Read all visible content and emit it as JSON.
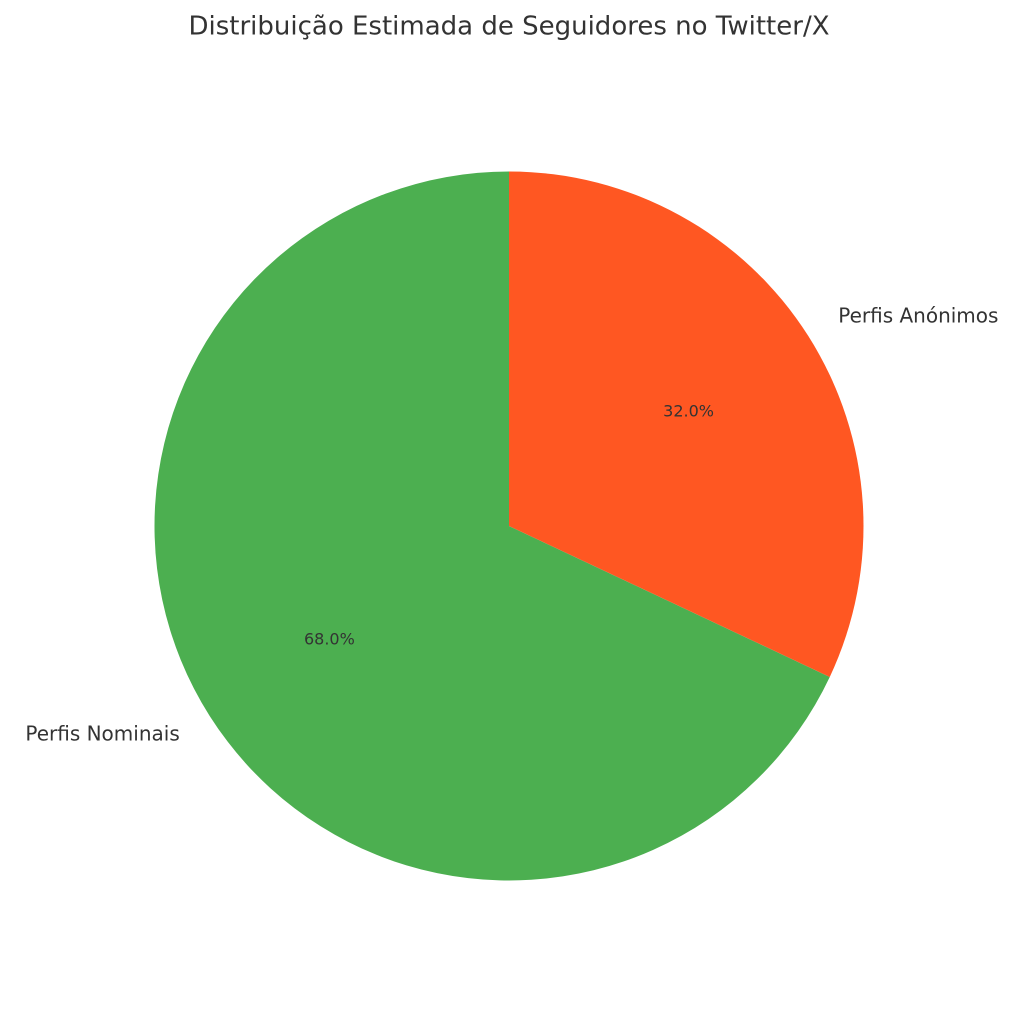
{
  "chart_data": {
    "type": "pie",
    "title": "Distribuição Estimada de Seguidores no Twitter/X",
    "categories": [
      "Perfis Nominais",
      "Perfis Anónimos"
    ],
    "values": [
      68,
      32
    ],
    "value_labels": [
      "68.0%",
      "32.0%"
    ],
    "colors": [
      "#4caf50",
      "#ff5722"
    ]
  }
}
